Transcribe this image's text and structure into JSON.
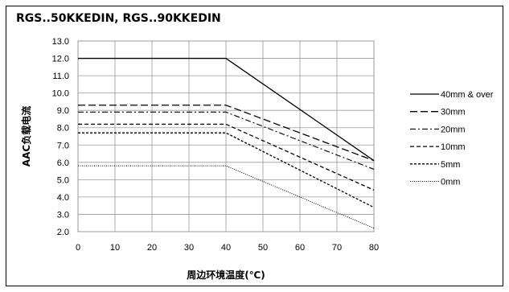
{
  "chart_data": {
    "type": "line",
    "title": "RGS..50KKEDIN, RGS..90KKEDIN",
    "xlabel": "周边环境温度(℃)",
    "ylabel": "AAC负载电流",
    "xlim": [
      0,
      80
    ],
    "ylim": [
      2.0,
      13.0
    ],
    "x_ticks": [
      "0",
      "10",
      "20",
      "30",
      "40",
      "50",
      "60",
      "70",
      "80"
    ],
    "y_ticks": [
      "2.0",
      "3.0",
      "4.0",
      "5.0",
      "6.0",
      "7.0",
      "8.0",
      "9.0",
      "10.0",
      "11.0",
      "12.0",
      "13.0"
    ],
    "grid": true,
    "legend_position": "right",
    "series": [
      {
        "name": "40mm & over",
        "dash": "",
        "width": 1.3,
        "points": [
          [
            0,
            12.0
          ],
          [
            40,
            12.0
          ],
          [
            80,
            6.1
          ]
        ]
      },
      {
        "name": "30mm",
        "dash": "9,4",
        "width": 1.3,
        "points": [
          [
            0,
            9.3
          ],
          [
            40,
            9.3
          ],
          [
            80,
            6.1
          ]
        ]
      },
      {
        "name": "20mm",
        "dash": "7,3,2,3",
        "width": 1.1,
        "points": [
          [
            0,
            8.9
          ],
          [
            40,
            8.9
          ],
          [
            80,
            5.6
          ]
        ]
      },
      {
        "name": "10mm",
        "dash": "5,3",
        "width": 1.3,
        "points": [
          [
            0,
            8.2
          ],
          [
            40,
            8.2
          ],
          [
            80,
            4.4
          ]
        ]
      },
      {
        "name": "5mm",
        "dash": "3,2",
        "width": 1.3,
        "points": [
          [
            0,
            7.7
          ],
          [
            40,
            7.7
          ],
          [
            80,
            3.4
          ]
        ]
      },
      {
        "name": "0mm",
        "dash": "1,1.5",
        "width": 1.0,
        "points": [
          [
            0,
            5.8
          ],
          [
            40,
            5.8
          ],
          [
            80,
            2.2
          ]
        ]
      }
    ]
  }
}
